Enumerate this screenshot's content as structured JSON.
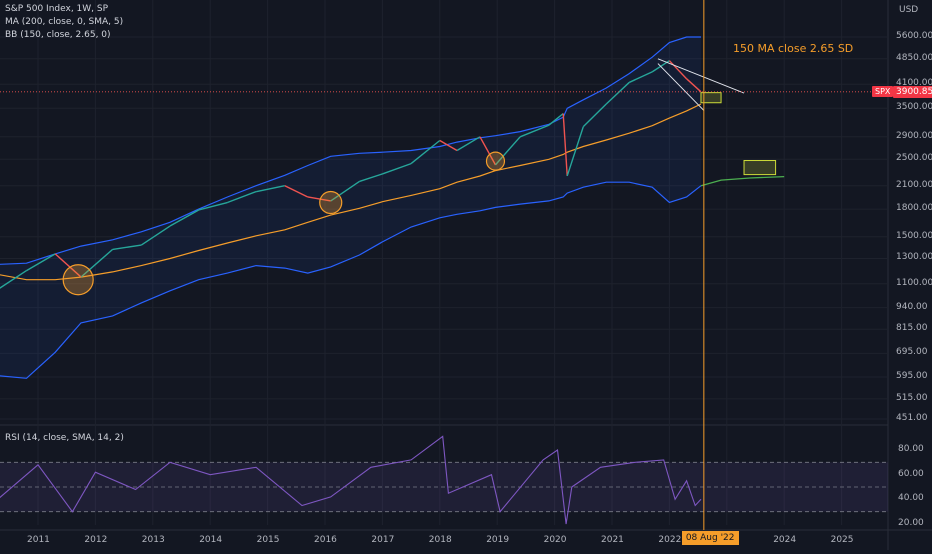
{
  "legend": {
    "symbol": "S&P 500 Index, 1W, SP",
    "ma": "MA (200, close, 0, SMA, 5)",
    "bb": "BB (150, close, 2.65, 0)",
    "rsi": "RSI (14, close, SMA, 14, 2)"
  },
  "currency": "USD",
  "annotation": "150 MA close 2.65 SD",
  "colors": {
    "background": "#131722",
    "price_up": "#26a69a",
    "price_down": "#ef5350",
    "ma": "#f59d2a",
    "bb_band": "#2962ff",
    "rsi": "#7e57c2",
    "marker": "#f59d2a",
    "projection": "#4caf50",
    "price_tag": "#f23645"
  },
  "chart_data": [
    {
      "type": "line",
      "scale": "log",
      "ylim": [
        420,
        7000
      ],
      "y_ticks": [
        "5600.00",
        "4850.00",
        "4100.00",
        "3500.00",
        "2900.00",
        "2500.00",
        "2100.00",
        "1800.00",
        "1500.00",
        "1300.00",
        "1100.00",
        "940.00",
        "815.00",
        "695.00",
        "595.00",
        "515.00",
        "451.00"
      ],
      "x_ticks": [
        "2011",
        "2012",
        "2013",
        "2014",
        "2015",
        "2016",
        "2017",
        "2018",
        "2019",
        "2020",
        "2021",
        "2022",
        "23",
        "2024",
        "2025"
      ],
      "x": [
        2010.3,
        2010.8,
        2011.3,
        2011.75,
        2012.3,
        2012.8,
        2013.3,
        2013.8,
        2014.3,
        2014.8,
        2015.3,
        2015.7,
        2016.1,
        2016.6,
        2017.0,
        2017.5,
        2018.0,
        2018.3,
        2018.7,
        2018.97,
        2019.4,
        2019.9,
        2020.15,
        2020.22,
        2020.5,
        2020.9,
        2021.3,
        2021.7,
        2022.0,
        2022.3,
        2022.55
      ],
      "series": [
        {
          "name": "SPX",
          "values": [
            1060,
            1200,
            1340,
            1150,
            1380,
            1420,
            1610,
            1790,
            1880,
            2020,
            2100,
            1950,
            1900,
            2160,
            2270,
            2430,
            2830,
            2650,
            2900,
            2410,
            2900,
            3130,
            3380,
            2240,
            3100,
            3600,
            4150,
            4450,
            4790,
            4250,
            3900.85
          ]
        },
        {
          "name": "MA",
          "values": [
            1170,
            1130,
            1130,
            1150,
            1190,
            1240,
            1300,
            1370,
            1440,
            1510,
            1570,
            1650,
            1730,
            1810,
            1890,
            1970,
            2060,
            2150,
            2240,
            2320,
            2400,
            2500,
            2580,
            2620,
            2720,
            2840,
            2970,
            3120,
            3280,
            3440,
            3600
          ]
        },
        {
          "name": "BB upper",
          "values": [
            1250,
            1260,
            1340,
            1410,
            1470,
            1550,
            1650,
            1800,
            1950,
            2100,
            2250,
            2400,
            2550,
            2600,
            2620,
            2650,
            2720,
            2800,
            2880,
            2920,
            3000,
            3150,
            3300,
            3500,
            3700,
            4000,
            4400,
            4900,
            5400,
            5600,
            5600
          ]
        },
        {
          "name": "BB lower",
          "values": [
            600,
            590,
            700,
            850,
            890,
            970,
            1050,
            1130,
            1180,
            1240,
            1220,
            1180,
            1230,
            1330,
            1450,
            1600,
            1700,
            1740,
            1780,
            1820,
            1860,
            1900,
            1950,
            2000,
            2080,
            2150,
            2150,
            2080,
            1880,
            1950,
            2100
          ]
        }
      ],
      "markers": [
        {
          "x": 2011.7,
          "y": 1130
        },
        {
          "x": 2016.1,
          "y": 1880
        },
        {
          "x": 2018.97,
          "y": 2470
        }
      ],
      "trendline": [
        {
          "x": 2021.8,
          "y": 4850
        },
        {
          "x": 2023.3,
          "y": 3870
        }
      ],
      "trendline_lower": [
        {
          "x": 2021.8,
          "y": 4700
        },
        {
          "x": 2022.6,
          "y": 3450
        }
      ],
      "target_boxes": [
        {
          "x0": 2022.55,
          "x1": 2022.9,
          "y0": 3630,
          "y1": 3880
        },
        {
          "x0": 2023.3,
          "x1": 2023.85,
          "y0": 2260,
          "y1": 2480
        }
      ],
      "projection": {
        "x": [
          2022.55,
          2022.9,
          2023.4,
          2024.0
        ],
        "values": [
          2100,
          2180,
          2210,
          2230
        ]
      },
      "last_price": "3900.85",
      "last_price_value": 3900.85,
      "symbol": "SPX",
      "cursor": {
        "x": 2022.6,
        "label": "08 Aug '22"
      }
    },
    {
      "type": "line",
      "title": "RSI (14, close, SMA, 14, 2)",
      "ylim": [
        15,
        95
      ],
      "y_ticks": [
        "80.00",
        "60.00",
        "40.00",
        "20.00"
      ],
      "bands": [
        70,
        50,
        30
      ],
      "x": [
        2010.3,
        2011.0,
        2011.6,
        2012.0,
        2012.7,
        2013.3,
        2014.0,
        2014.8,
        2015.6,
        2016.1,
        2016.8,
        2017.5,
        2018.05,
        2018.15,
        2018.9,
        2019.05,
        2019.8,
        2020.05,
        2020.2,
        2020.3,
        2020.8,
        2021.4,
        2021.9,
        2022.1,
        2022.3,
        2022.45,
        2022.55
      ],
      "series": [
        {
          "name": "RSI",
          "values": [
            40,
            68,
            30,
            62,
            48,
            70,
            60,
            66,
            35,
            42,
            66,
            72,
            91,
            45,
            60,
            30,
            72,
            80,
            20,
            50,
            66,
            70,
            72,
            40,
            55,
            35,
            40
          ]
        }
      ]
    }
  ]
}
